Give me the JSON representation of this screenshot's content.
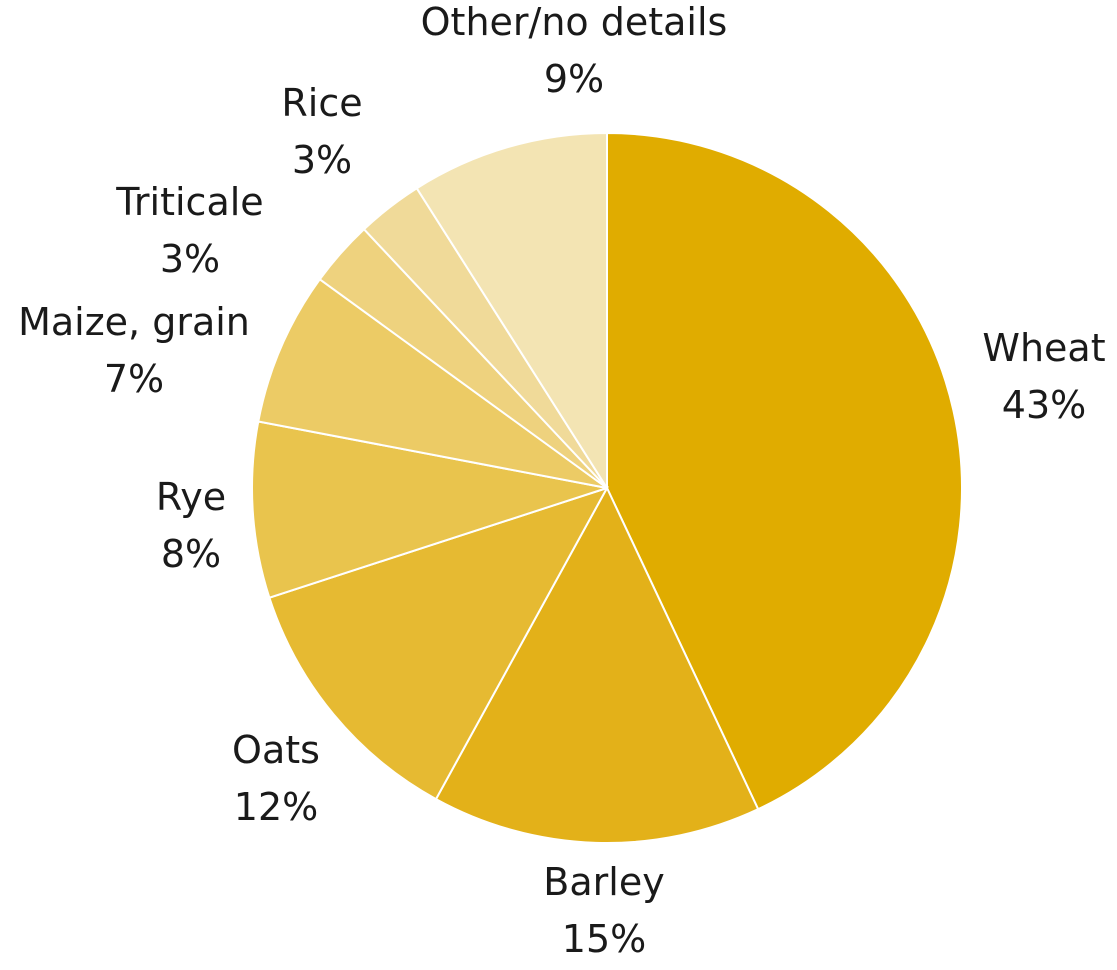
{
  "chart_data": {
    "type": "pie",
    "title": "",
    "start_angle": "12 o'clock",
    "direction": "clockwise",
    "slices": [
      {
        "label": "Wheat",
        "value": 43,
        "value_label": "43%",
        "color": "#E0AC00"
      },
      {
        "label": "Barley",
        "value": 15,
        "value_label": "15%",
        "color": "#E3B119"
      },
      {
        "label": "Oats",
        "value": 12,
        "value_label": "12%",
        "color": "#E6BA32"
      },
      {
        "label": "Rye",
        "value": 8,
        "value_label": "8%",
        "color": "#E9C44D"
      },
      {
        "label": "Maize, grain",
        "value": 7,
        "value_label": "7%",
        "color": "#ECCB65"
      },
      {
        "label": "Triticale",
        "value": 3,
        "value_label": "3%",
        "color": "#EED27E"
      },
      {
        "label": "Rice",
        "value": 3,
        "value_label": "3%",
        "color": "#F0DA99"
      },
      {
        "label": "Other/no details",
        "value": 9,
        "value_label": "9%",
        "color": "#F3E4B3"
      }
    ]
  }
}
